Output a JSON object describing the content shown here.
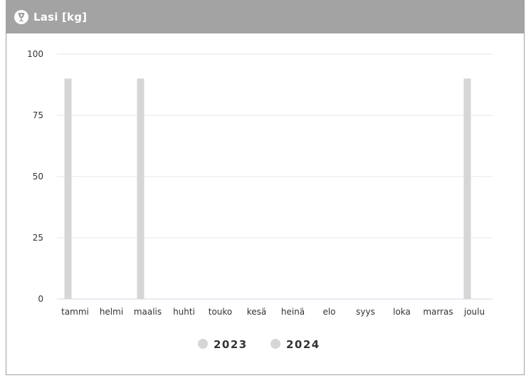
{
  "header": {
    "title": "Lasi [kg]",
    "icon": "wine-glass-icon"
  },
  "colors": {
    "header_bg": "#a3a3a3",
    "bar_2023": "#d6d6d6",
    "bar_2024": "#d6d6d6",
    "grid": "#e6e6e6",
    "axis": "#ccd6eb"
  },
  "chart_data": {
    "type": "bar",
    "title": "Lasi [kg]",
    "categories": [
      "tammi",
      "helmi",
      "maalis",
      "huhti",
      "touko",
      "kesä",
      "heinä",
      "elo",
      "syys",
      "loka",
      "marras",
      "joulu"
    ],
    "series": [
      {
        "name": "2023",
        "values": [
          90,
          0,
          90,
          0,
          0,
          0,
          0,
          0,
          0,
          0,
          0,
          90
        ]
      },
      {
        "name": "2024",
        "values": [
          0,
          0,
          0,
          0,
          0,
          0,
          0,
          0,
          0,
          0,
          0,
          0
        ]
      }
    ],
    "yticks": [
      "0",
      "25",
      "50",
      "75",
      "100"
    ],
    "ylim": [
      0,
      100
    ],
    "grid": true,
    "legend": "bottom-center"
  }
}
